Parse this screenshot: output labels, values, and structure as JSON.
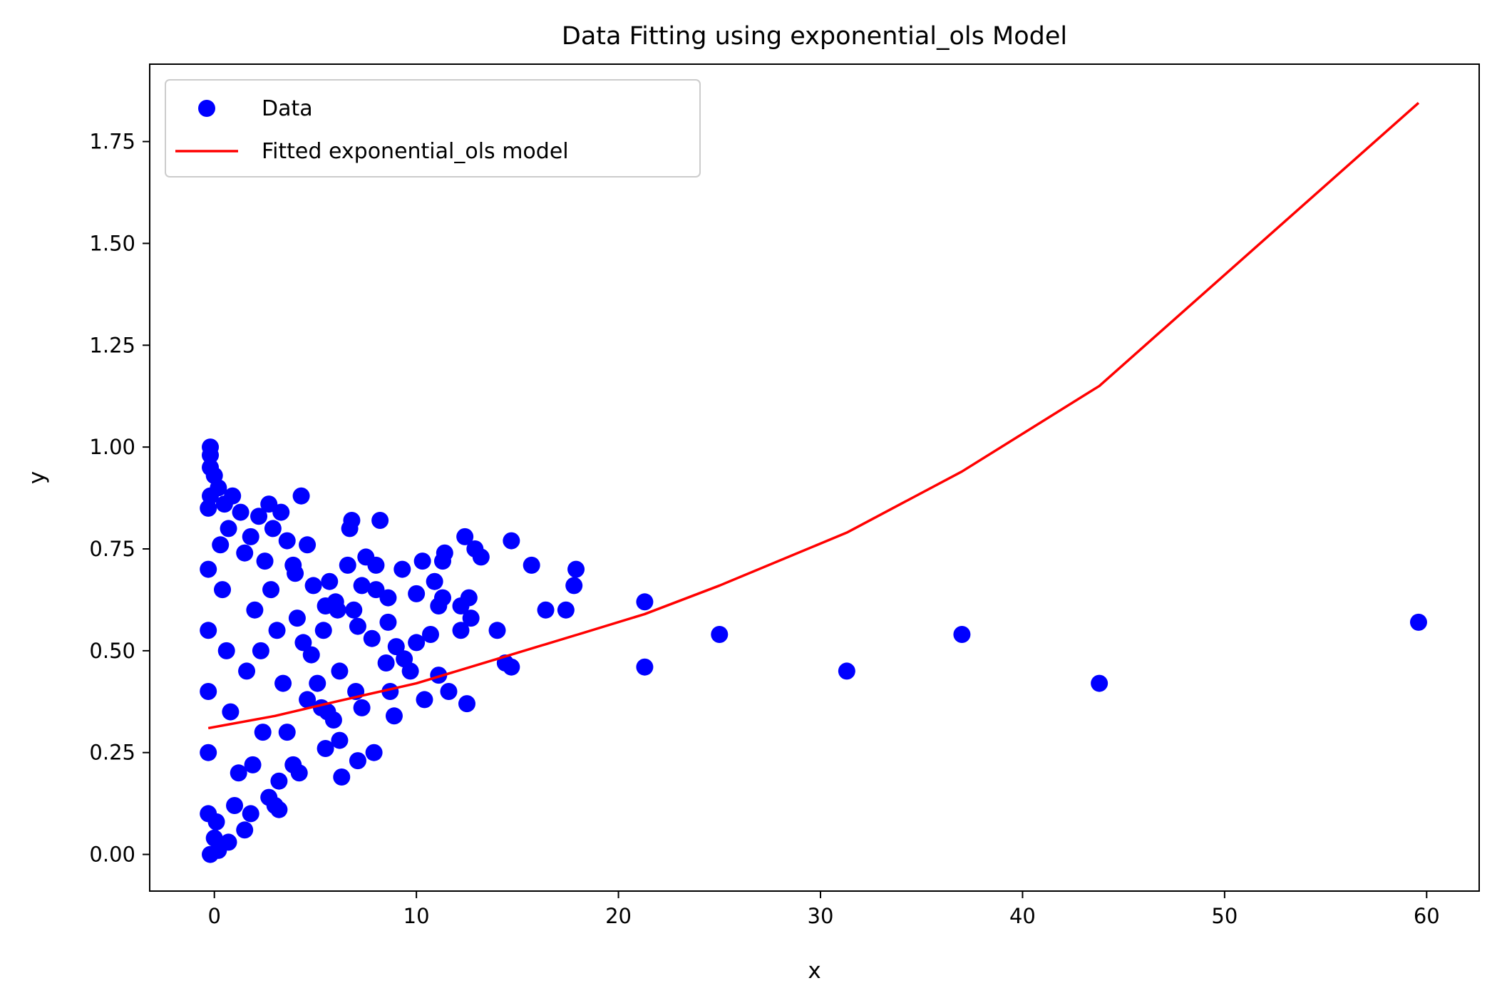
{
  "chart_data": {
    "type": "scatter",
    "title": "Data Fitting using exponential_ols Model",
    "xlabel": "x",
    "ylabel": "y",
    "xlim": [
      -3.2,
      62.6
    ],
    "ylim": [
      -0.09,
      1.94
    ],
    "grid": false,
    "legend_position": "top-left",
    "x_ticks": [
      0,
      10,
      20,
      30,
      40,
      50,
      60
    ],
    "x_tick_labels": [
      "0",
      "10",
      "20",
      "30",
      "40",
      "50",
      "60"
    ],
    "y_ticks": [
      0.0,
      0.25,
      0.5,
      0.75,
      1.0,
      1.25,
      1.5,
      1.75
    ],
    "y_tick_labels": [
      "0.00",
      "0.25",
      "0.50",
      "0.75",
      "1.00",
      "1.25",
      "1.50",
      "1.75"
    ],
    "colors": {
      "data": "#0000ff",
      "fit": "#ff0000"
    },
    "series": [
      {
        "name": "Data",
        "kind": "scatter",
        "points": [
          [
            -0.2,
            1.0
          ],
          [
            -0.2,
            0.98
          ],
          [
            -0.2,
            0.95
          ],
          [
            0.0,
            0.93
          ],
          [
            0.2,
            0.9
          ],
          [
            -0.2,
            0.88
          ],
          [
            0.9,
            0.88
          ],
          [
            0.5,
            0.86
          ],
          [
            1.3,
            0.84
          ],
          [
            2.7,
            0.86
          ],
          [
            3.3,
            0.84
          ],
          [
            4.3,
            0.88
          ],
          [
            2.9,
            0.8
          ],
          [
            2.2,
            0.83
          ],
          [
            1.8,
            0.78
          ],
          [
            0.7,
            0.8
          ],
          [
            0.3,
            0.76
          ],
          [
            1.5,
            0.74
          ],
          [
            2.5,
            0.72
          ],
          [
            3.6,
            0.77
          ],
          [
            4.6,
            0.76
          ],
          [
            3.9,
            0.71
          ],
          [
            4.0,
            0.69
          ],
          [
            4.9,
            0.66
          ],
          [
            5.7,
            0.67
          ],
          [
            6.0,
            0.62
          ],
          [
            6.6,
            0.71
          ],
          [
            6.7,
            0.8
          ],
          [
            6.8,
            0.82
          ],
          [
            7.5,
            0.73
          ],
          [
            8.2,
            0.82
          ],
          [
            8.0,
            0.71
          ],
          [
            8.0,
            0.65
          ],
          [
            8.6,
            0.63
          ],
          [
            7.3,
            0.66
          ],
          [
            6.9,
            0.6
          ],
          [
            7.1,
            0.56
          ],
          [
            7.8,
            0.53
          ],
          [
            8.6,
            0.57
          ],
          [
            9.3,
            0.7
          ],
          [
            9.0,
            0.51
          ],
          [
            9.4,
            0.48
          ],
          [
            9.7,
            0.45
          ],
          [
            8.5,
            0.47
          ],
          [
            8.7,
            0.4
          ],
          [
            8.9,
            0.34
          ],
          [
            7.9,
            0.25
          ],
          [
            7.1,
            0.23
          ],
          [
            6.3,
            0.19
          ],
          [
            6.2,
            0.28
          ],
          [
            5.5,
            0.26
          ],
          [
            5.9,
            0.33
          ],
          [
            5.3,
            0.36
          ],
          [
            4.6,
            0.38
          ],
          [
            4.2,
            0.2
          ],
          [
            3.9,
            0.22
          ],
          [
            3.2,
            0.18
          ],
          [
            3.0,
            0.12
          ],
          [
            3.2,
            0.11
          ],
          [
            2.7,
            0.14
          ],
          [
            1.8,
            0.1
          ],
          [
            1.5,
            0.06
          ],
          [
            0.7,
            0.03
          ],
          [
            0.2,
            0.01
          ],
          [
            -0.2,
            0.0
          ],
          [
            0.0,
            0.04
          ],
          [
            0.1,
            0.08
          ],
          [
            1.0,
            0.12
          ],
          [
            1.9,
            0.22
          ],
          [
            2.4,
            0.3
          ],
          [
            3.4,
            0.42
          ],
          [
            4.8,
            0.49
          ],
          [
            5.4,
            0.55
          ],
          [
            6.2,
            0.45
          ],
          [
            7.0,
            0.4
          ],
          [
            7.3,
            0.36
          ],
          [
            6.1,
            0.6
          ],
          [
            5.5,
            0.61
          ],
          [
            10.0,
            0.52
          ],
          [
            10.0,
            0.64
          ],
          [
            10.3,
            0.72
          ],
          [
            10.9,
            0.67
          ],
          [
            11.1,
            0.61
          ],
          [
            11.3,
            0.63
          ],
          [
            11.3,
            0.72
          ],
          [
            11.4,
            0.74
          ],
          [
            10.7,
            0.54
          ],
          [
            11.1,
            0.44
          ],
          [
            10.4,
            0.38
          ],
          [
            11.6,
            0.4
          ],
          [
            12.2,
            0.55
          ],
          [
            12.2,
            0.61
          ],
          [
            12.6,
            0.63
          ],
          [
            12.7,
            0.58
          ],
          [
            12.4,
            0.78
          ],
          [
            12.9,
            0.75
          ],
          [
            13.2,
            0.73
          ],
          [
            14.0,
            0.55
          ],
          [
            12.5,
            0.37
          ],
          [
            14.4,
            0.47
          ],
          [
            14.7,
            0.46
          ],
          [
            14.7,
            0.77
          ],
          [
            15.7,
            0.71
          ],
          [
            16.4,
            0.6
          ],
          [
            17.4,
            0.6
          ],
          [
            17.8,
            0.66
          ],
          [
            17.9,
            0.7
          ],
          [
            21.3,
            0.62
          ],
          [
            21.3,
            0.46
          ],
          [
            25.0,
            0.54
          ],
          [
            31.3,
            0.45
          ],
          [
            37.0,
            0.54
          ],
          [
            43.8,
            0.42
          ],
          [
            59.6,
            0.57
          ],
          [
            -0.3,
            0.85
          ],
          [
            -0.3,
            0.7
          ],
          [
            -0.3,
            0.55
          ],
          [
            -0.3,
            0.4
          ],
          [
            -0.3,
            0.25
          ],
          [
            -0.3,
            0.1
          ],
          [
            0.4,
            0.65
          ],
          [
            0.6,
            0.5
          ],
          [
            0.8,
            0.35
          ],
          [
            1.2,
            0.2
          ],
          [
            1.6,
            0.45
          ],
          [
            2.0,
            0.6
          ],
          [
            2.3,
            0.5
          ],
          [
            2.8,
            0.65
          ],
          [
            3.1,
            0.55
          ],
          [
            3.6,
            0.3
          ],
          [
            4.1,
            0.58
          ],
          [
            4.4,
            0.52
          ],
          [
            5.1,
            0.42
          ],
          [
            5.6,
            0.35
          ]
        ]
      },
      {
        "name": "Fitted exponential_ols model",
        "kind": "line",
        "x": [
          -0.3,
          3.0,
          6.0,
          10.0,
          14.0,
          18.0,
          21.3,
          25.0,
          31.3,
          37.0,
          43.8,
          59.6
        ],
        "y": [
          0.31,
          0.34,
          0.375,
          0.42,
          0.48,
          0.54,
          0.59,
          0.66,
          0.79,
          0.94,
          1.15,
          1.845
        ]
      }
    ]
  }
}
